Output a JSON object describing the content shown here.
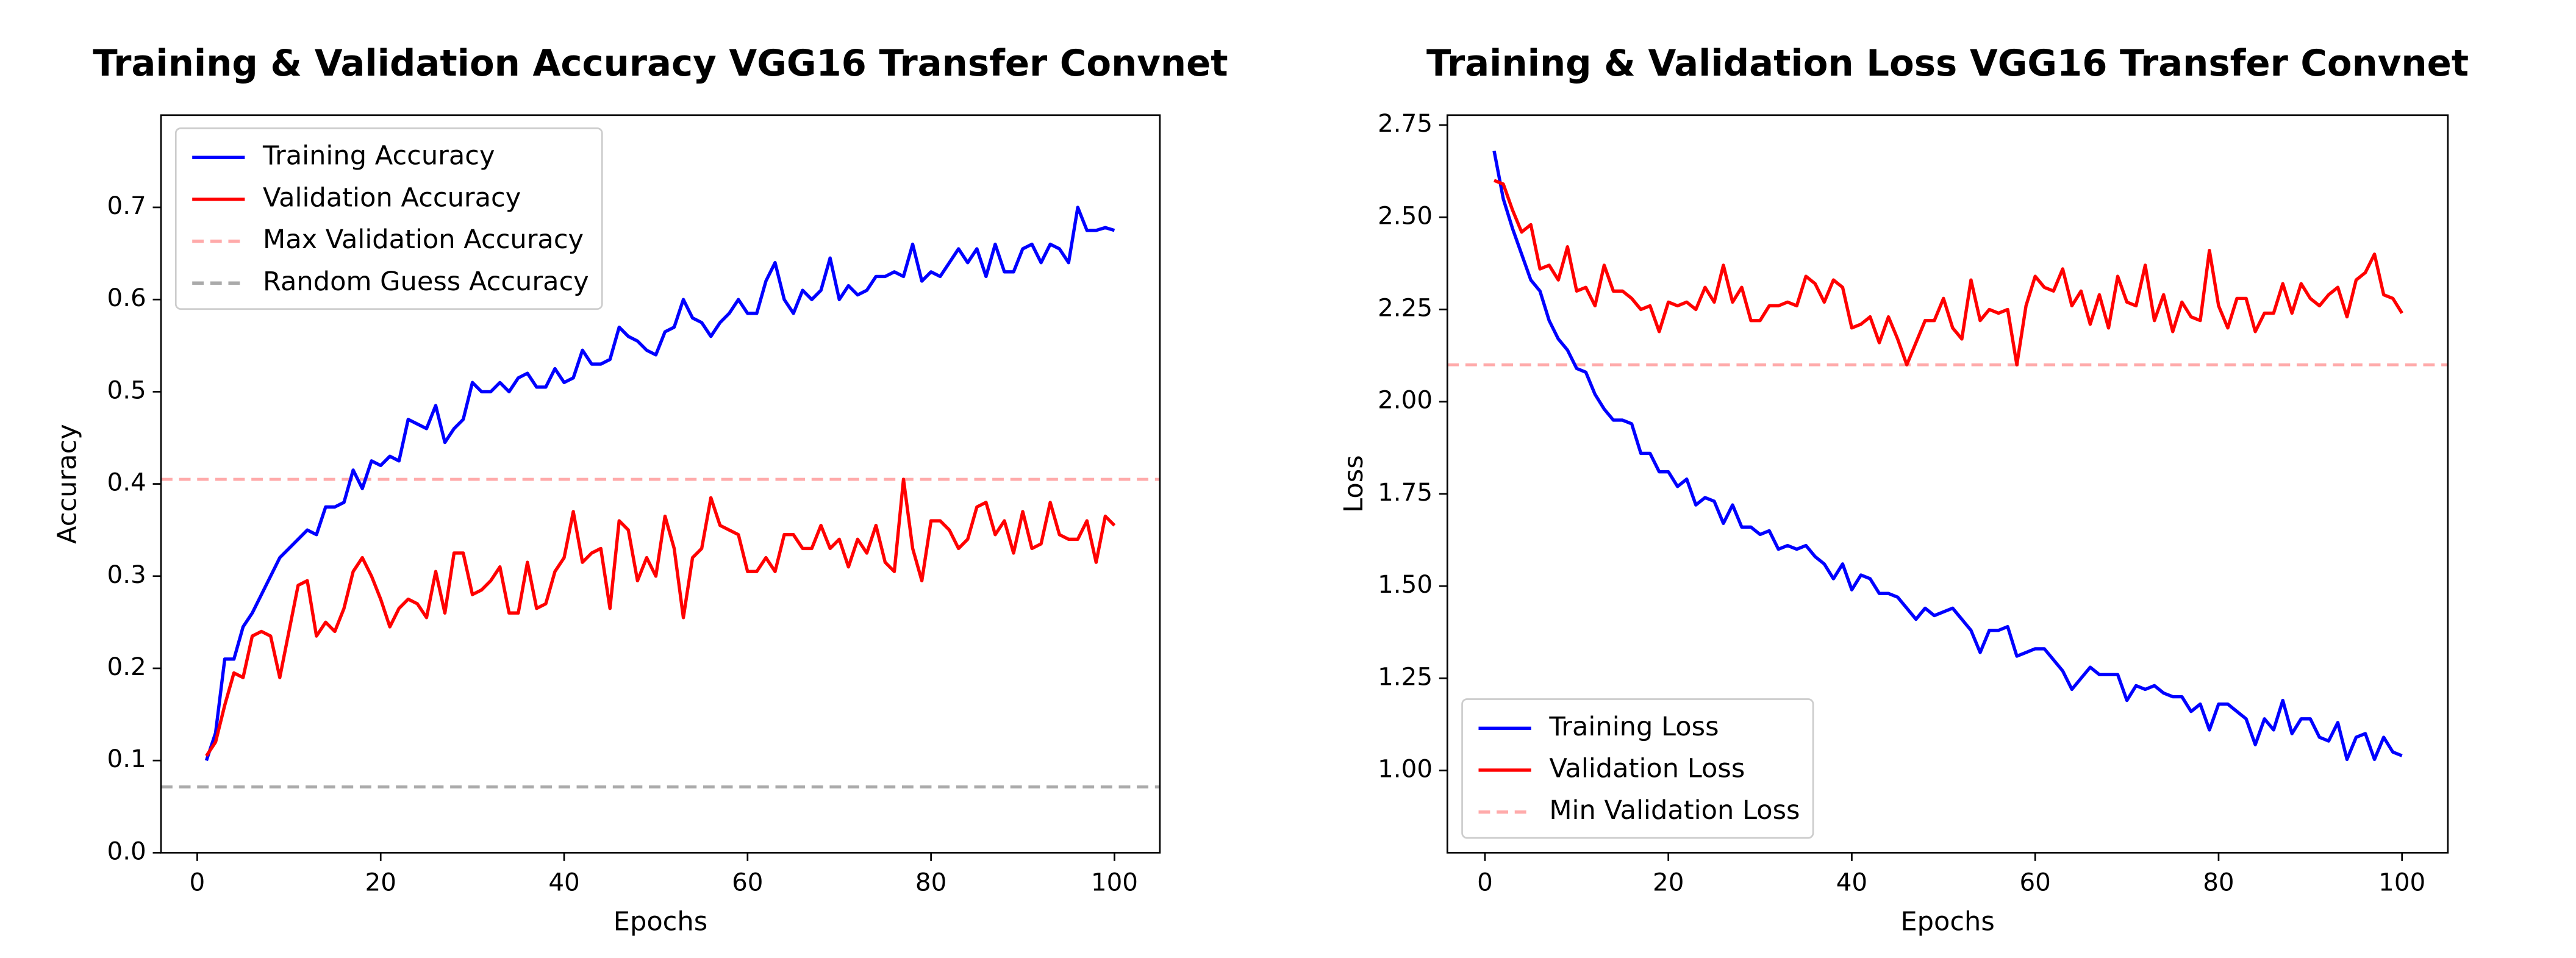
{
  "chart_data": [
    {
      "type": "line",
      "title": "Training & Validation Accuracy VGG16 Transfer Convnet",
      "xlabel": "Epochs",
      "ylabel": "Accuracy",
      "x": [
        1,
        2,
        3,
        4,
        5,
        6,
        7,
        8,
        9,
        10,
        11,
        12,
        13,
        14,
        15,
        16,
        17,
        18,
        19,
        20,
        21,
        22,
        23,
        24,
        25,
        26,
        27,
        28,
        29,
        30,
        31,
        32,
        33,
        34,
        35,
        36,
        37,
        38,
        39,
        40,
        41,
        42,
        43,
        44,
        45,
        46,
        47,
        48,
        49,
        50,
        51,
        52,
        53,
        54,
        55,
        56,
        57,
        58,
        59,
        60,
        61,
        62,
        63,
        64,
        65,
        66,
        67,
        68,
        69,
        70,
        71,
        72,
        73,
        74,
        75,
        76,
        77,
        78,
        79,
        80,
        81,
        82,
        83,
        84,
        85,
        86,
        87,
        88,
        89,
        90,
        91,
        92,
        93,
        94,
        95,
        96,
        97,
        98,
        99,
        100
      ],
      "series": [
        {
          "name": "Training Accuracy",
          "color": "#0000ff",
          "values": [
            0.1,
            0.13,
            0.21,
            0.21,
            0.245,
            0.26,
            0.28,
            0.3,
            0.32,
            0.33,
            0.34,
            0.35,
            0.345,
            0.375,
            0.375,
            0.38,
            0.415,
            0.395,
            0.425,
            0.42,
            0.43,
            0.425,
            0.47,
            0.465,
            0.46,
            0.485,
            0.445,
            0.46,
            0.47,
            0.51,
            0.5,
            0.5,
            0.51,
            0.5,
            0.515,
            0.52,
            0.505,
            0.505,
            0.525,
            0.51,
            0.515,
            0.545,
            0.53,
            0.53,
            0.535,
            0.57,
            0.56,
            0.555,
            0.545,
            0.54,
            0.565,
            0.57,
            0.6,
            0.58,
            0.575,
            0.56,
            0.575,
            0.585,
            0.6,
            0.585,
            0.585,
            0.62,
            0.64,
            0.6,
            0.585,
            0.61,
            0.6,
            0.61,
            0.645,
            0.6,
            0.615,
            0.605,
            0.61,
            0.625,
            0.625,
            0.63,
            0.625,
            0.66,
            0.62,
            0.63,
            0.625,
            0.64,
            0.655,
            0.64,
            0.655,
            0.625,
            0.66,
            0.63,
            0.63,
            0.655,
            0.66,
            0.64,
            0.66,
            0.655,
            0.64,
            0.7,
            0.675,
            0.675,
            0.678,
            0.675
          ]
        },
        {
          "name": "Validation Accuracy",
          "color": "#ff0000",
          "values": [
            0.105,
            0.12,
            0.16,
            0.195,
            0.19,
            0.235,
            0.24,
            0.235,
            0.19,
            0.24,
            0.29,
            0.295,
            0.235,
            0.25,
            0.24,
            0.265,
            0.305,
            0.32,
            0.3,
            0.275,
            0.245,
            0.265,
            0.275,
            0.27,
            0.255,
            0.305,
            0.26,
            0.325,
            0.325,
            0.28,
            0.285,
            0.295,
            0.31,
            0.26,
            0.26,
            0.315,
            0.265,
            0.27,
            0.305,
            0.32,
            0.37,
            0.315,
            0.325,
            0.33,
            0.265,
            0.36,
            0.35,
            0.295,
            0.32,
            0.3,
            0.365,
            0.33,
            0.255,
            0.32,
            0.33,
            0.385,
            0.355,
            0.35,
            0.345,
            0.305,
            0.305,
            0.32,
            0.305,
            0.345,
            0.345,
            0.33,
            0.33,
            0.355,
            0.33,
            0.34,
            0.31,
            0.34,
            0.325,
            0.355,
            0.315,
            0.305,
            0.405,
            0.33,
            0.295,
            0.36,
            0.36,
            0.35,
            0.33,
            0.34,
            0.375,
            0.38,
            0.345,
            0.36,
            0.325,
            0.37,
            0.33,
            0.335,
            0.38,
            0.345,
            0.34,
            0.34,
            0.36,
            0.315,
            0.365,
            0.355
          ]
        }
      ],
      "hlines": [
        {
          "name": "Max Validation Accuracy",
          "color": "#ffaaaa",
          "value": 0.405
        },
        {
          "name": "Random Guess Accuracy",
          "color": "#aaaaaa",
          "value": 0.0714
        }
      ],
      "xlim": [
        -3.95,
        104.95
      ],
      "xticks": [
        0,
        20,
        40,
        60,
        80,
        100
      ],
      "ylim": [
        0,
        0.8
      ],
      "yticks": [
        {
          "value": 0,
          "label": "0.0"
        },
        0.1,
        0.2,
        0.3,
        0.4,
        0.5,
        0.6,
        0.7
      ],
      "legend": "upper left",
      "grid": false
    },
    {
      "type": "line",
      "title": "Training & Validation Loss VGG16 Transfer Convnet",
      "xlabel": "Epochs",
      "ylabel": "Loss",
      "x": [
        1,
        2,
        3,
        4,
        5,
        6,
        7,
        8,
        9,
        10,
        11,
        12,
        13,
        14,
        15,
        16,
        17,
        18,
        19,
        20,
        21,
        22,
        23,
        24,
        25,
        26,
        27,
        28,
        29,
        30,
        31,
        32,
        33,
        34,
        35,
        36,
        37,
        38,
        39,
        40,
        41,
        42,
        43,
        44,
        45,
        46,
        47,
        48,
        49,
        50,
        51,
        52,
        53,
        54,
        55,
        56,
        57,
        58,
        59,
        60,
        61,
        62,
        63,
        64,
        65,
        66,
        67,
        68,
        69,
        70,
        71,
        72,
        73,
        74,
        75,
        76,
        77,
        78,
        79,
        80,
        81,
        82,
        83,
        84,
        85,
        86,
        87,
        88,
        89,
        90,
        91,
        92,
        93,
        94,
        95,
        96,
        97,
        98,
        99,
        100
      ],
      "series": [
        {
          "name": "Training Loss",
          "color": "#0000ff",
          "values": [
            2.68,
            2.55,
            2.47,
            2.4,
            2.33,
            2.3,
            2.22,
            2.17,
            2.14,
            2.09,
            2.08,
            2.02,
            1.98,
            1.95,
            1.95,
            1.94,
            1.86,
            1.86,
            1.81,
            1.81,
            1.77,
            1.79,
            1.72,
            1.74,
            1.73,
            1.67,
            1.72,
            1.66,
            1.66,
            1.64,
            1.65,
            1.6,
            1.61,
            1.6,
            1.61,
            1.58,
            1.56,
            1.52,
            1.56,
            1.49,
            1.53,
            1.52,
            1.48,
            1.48,
            1.47,
            1.44,
            1.41,
            1.44,
            1.42,
            1.43,
            1.44,
            1.41,
            1.38,
            1.32,
            1.38,
            1.38,
            1.39,
            1.31,
            1.32,
            1.33,
            1.33,
            1.3,
            1.27,
            1.22,
            1.25,
            1.28,
            1.26,
            1.26,
            1.26,
            1.19,
            1.23,
            1.22,
            1.23,
            1.21,
            1.2,
            1.2,
            1.16,
            1.18,
            1.11,
            1.18,
            1.18,
            1.16,
            1.14,
            1.07,
            1.14,
            1.11,
            1.19,
            1.1,
            1.14,
            1.14,
            1.09,
            1.08,
            1.13,
            1.03,
            1.09,
            1.1,
            1.03,
            1.09,
            1.05,
            1.04
          ]
        },
        {
          "name": "Validation Loss",
          "color": "#ff0000",
          "values": [
            2.6,
            2.59,
            2.52,
            2.46,
            2.48,
            2.36,
            2.37,
            2.33,
            2.42,
            2.3,
            2.31,
            2.26,
            2.37,
            2.3,
            2.3,
            2.28,
            2.25,
            2.26,
            2.19,
            2.27,
            2.26,
            2.27,
            2.25,
            2.31,
            2.27,
            2.37,
            2.27,
            2.31,
            2.22,
            2.22,
            2.26,
            2.26,
            2.27,
            2.26,
            2.34,
            2.32,
            2.27,
            2.33,
            2.31,
            2.2,
            2.21,
            2.23,
            2.16,
            2.23,
            2.17,
            2.1,
            2.16,
            2.22,
            2.22,
            2.28,
            2.2,
            2.17,
            2.33,
            2.22,
            2.25,
            2.24,
            2.25,
            2.1,
            2.26,
            2.34,
            2.31,
            2.3,
            2.36,
            2.26,
            2.3,
            2.21,
            2.29,
            2.2,
            2.34,
            2.27,
            2.26,
            2.37,
            2.22,
            2.29,
            2.19,
            2.27,
            2.23,
            2.22,
            2.41,
            2.26,
            2.2,
            2.28,
            2.28,
            2.19,
            2.24,
            2.24,
            2.32,
            2.24,
            2.32,
            2.28,
            2.26,
            2.29,
            2.31,
            2.23,
            2.33,
            2.35,
            2.4,
            2.29,
            2.28,
            2.24
          ]
        }
      ],
      "hlines": [
        {
          "name": "Min Validation Loss",
          "color": "#ffaaaa",
          "value": 2.1
        }
      ],
      "xlim": [
        -4.1,
        105
      ],
      "xticks": [
        0,
        20,
        40,
        60,
        80,
        100
      ],
      "ylim": [
        0.777,
        2.777
      ],
      "yticks": [
        {
          "value": 1,
          "label": "1.00"
        },
        {
          "value": 1.25,
          "label": "1.25"
        },
        {
          "value": 1.5,
          "label": "1.50"
        },
        {
          "value": 1.75,
          "label": "1.75"
        },
        {
          "value": 2,
          "label": "2.00"
        },
        {
          "value": 2.25,
          "label": "2.25"
        },
        {
          "value": 2.5,
          "label": "2.50"
        },
        {
          "value": 2.75,
          "label": "2.75"
        }
      ],
      "legend": "lower left",
      "grid": false
    }
  ]
}
